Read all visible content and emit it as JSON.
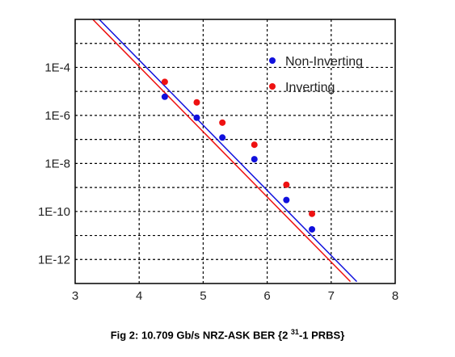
{
  "chart_data": {
    "type": "scatter",
    "title": "",
    "xlabel": "",
    "ylabel": "",
    "xlim": [
      3,
      8
    ],
    "ylim": [
      1e-13,
      0.01
    ],
    "y_scale": "log",
    "grid": true,
    "legend_position": "top-right",
    "x_ticks": [
      3,
      4,
      5,
      6,
      7,
      8
    ],
    "x_tick_labels": [
      "3",
      "4",
      "5",
      "6",
      "7",
      "8"
    ],
    "y_ticks": [
      1e-12,
      1e-10,
      1e-08,
      1e-06,
      0.0001
    ],
    "y_tick_labels": [
      "1E-12",
      "1E-10",
      "1E-8",
      "1E-6",
      "1E-4"
    ],
    "series": [
      {
        "name": "Non-Inverting",
        "color": "#1010dd",
        "marker": "circle",
        "x": [
          4.4,
          4.9,
          5.3,
          5.8,
          6.3,
          6.7
        ],
        "y": [
          6e-06,
          8e-07,
          1.2e-07,
          1.5e-08,
          3e-10,
          1.8e-11
        ],
        "fit_line": {
          "x": [
            3.2,
            7.4
          ],
          "y": [
            0.03,
            1.2e-13
          ]
        }
      },
      {
        "name": "Inverting",
        "color": "#ee1111",
        "marker": "circle",
        "x": [
          4.4,
          4.9,
          5.3,
          5.8,
          6.3,
          6.7
        ],
        "y": [
          2.5e-05,
          3.5e-06,
          5e-07,
          6e-08,
          1.3e-09,
          8e-11
        ],
        "fit_line": {
          "x": [
            3.1,
            7.3
          ],
          "y": [
            0.03,
            1.2e-13
          ]
        }
      }
    ]
  },
  "caption": {
    "prefix": "Fig 2: 10.709 Gb/s NRZ-ASK BER {2 ",
    "superscript": "31",
    "suffix": "-1 PRBS}"
  }
}
